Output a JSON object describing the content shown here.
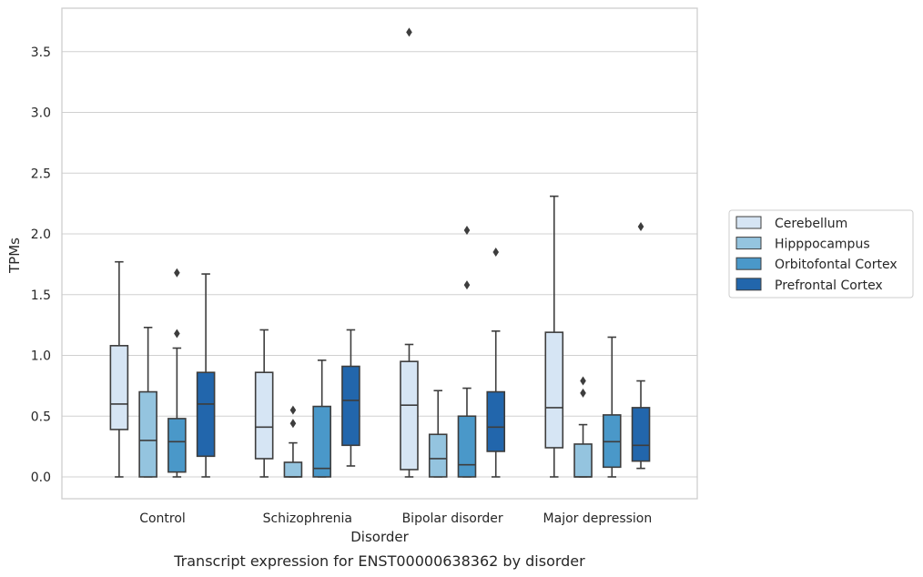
{
  "chart_data": {
    "type": "box",
    "title": "",
    "caption": "Transcript expression for ENST00000638362 by disorder",
    "xlabel": "Disorder",
    "ylabel": "TPMs",
    "ylim": [
      -0.17,
      3.85
    ],
    "yticks": [
      "0.0",
      "0.5",
      "1.0",
      "1.5",
      "2.0",
      "2.5",
      "3.0",
      "3.5"
    ],
    "grid": true,
    "legend_position": "right",
    "categories": [
      "Control",
      "Schizophrenia",
      "Bipolar disorder",
      "Major depression"
    ],
    "series": [
      {
        "name": "Cerebellum",
        "color": "#d6e5f4",
        "boxes": [
          {
            "whislo": 0.0,
            "q1": 0.39,
            "med": 0.6,
            "q3": 1.08,
            "whishi": 1.77,
            "fliers": []
          },
          {
            "whislo": 0.0,
            "q1": 0.15,
            "med": 0.41,
            "q3": 0.86,
            "whishi": 1.21,
            "fliers": []
          },
          {
            "whislo": 0.0,
            "q1": 0.06,
            "med": 0.59,
            "q3": 0.95,
            "whishi": 1.09,
            "fliers": [
              3.66
            ]
          },
          {
            "whislo": 0.0,
            "q1": 0.24,
            "med": 0.57,
            "q3": 1.19,
            "whishi": 2.31,
            "fliers": []
          }
        ]
      },
      {
        "name": "Hipppocampus",
        "color": "#94c4df",
        "boxes": [
          {
            "whislo": 0.0,
            "q1": 0.0,
            "med": 0.3,
            "q3": 0.7,
            "whishi": 1.23,
            "fliers": []
          },
          {
            "whislo": 0.0,
            "q1": 0.0,
            "med": 0.0,
            "q3": 0.12,
            "whishi": 0.28,
            "fliers": [
              0.44,
              0.55
            ]
          },
          {
            "whislo": 0.0,
            "q1": 0.0,
            "med": 0.15,
            "q3": 0.35,
            "whishi": 0.71,
            "fliers": []
          },
          {
            "whislo": 0.0,
            "q1": 0.0,
            "med": 0.0,
            "q3": 0.27,
            "whishi": 0.43,
            "fliers": [
              0.69,
              0.79
            ]
          }
        ]
      },
      {
        "name": "Orbitofontal Cortex",
        "color": "#4a98c9",
        "boxes": [
          {
            "whislo": 0.0,
            "q1": 0.04,
            "med": 0.29,
            "q3": 0.48,
            "whishi": 1.06,
            "fliers": [
              1.18,
              1.68
            ]
          },
          {
            "whislo": 0.0,
            "q1": 0.0,
            "med": 0.07,
            "q3": 0.58,
            "whishi": 0.96,
            "fliers": []
          },
          {
            "whislo": 0.0,
            "q1": 0.0,
            "med": 0.1,
            "q3": 0.5,
            "whishi": 0.73,
            "fliers": [
              1.58,
              2.03
            ]
          },
          {
            "whislo": 0.0,
            "q1": 0.08,
            "med": 0.29,
            "q3": 0.51,
            "whishi": 1.15,
            "fliers": []
          }
        ]
      },
      {
        "name": "Prefrontal Cortex",
        "color": "#2266ac",
        "boxes": [
          {
            "whislo": 0.0,
            "q1": 0.17,
            "med": 0.6,
            "q3": 0.86,
            "whishi": 1.67,
            "fliers": []
          },
          {
            "whislo": 0.09,
            "q1": 0.26,
            "med": 0.63,
            "q3": 0.91,
            "whishi": 1.21,
            "fliers": []
          },
          {
            "whislo": 0.0,
            "q1": 0.21,
            "med": 0.41,
            "q3": 0.7,
            "whishi": 1.2,
            "fliers": [
              1.85
            ]
          },
          {
            "whislo": 0.07,
            "q1": 0.13,
            "med": 0.26,
            "q3": 0.57,
            "whishi": 0.79,
            "fliers": [
              2.06
            ]
          }
        ]
      }
    ]
  }
}
